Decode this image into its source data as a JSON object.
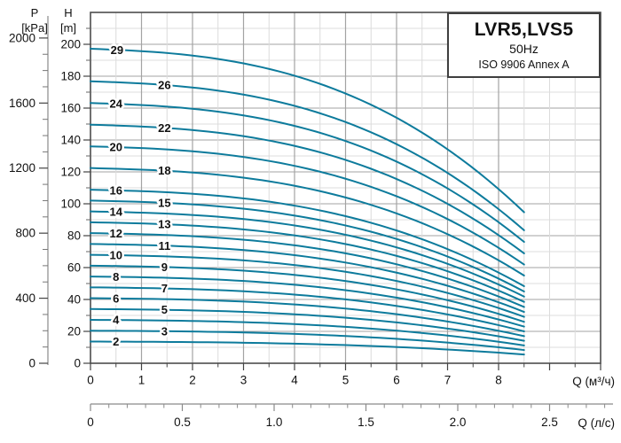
{
  "header": {
    "pressure_axis_title": "P\n[kPa]",
    "head_axis_title": "H\n[m]"
  },
  "title_box": {
    "model": "LVR5,LVS5",
    "frequency": "50Hz",
    "standard": "ISO 9906 Annex A"
  },
  "colors": {
    "curve": "#0d7b9c",
    "grid_major": "#a3a3a3",
    "grid_minor": "#dcdcdc",
    "frame": "#4d4d4d",
    "axis_secondary": "#8a8a8a",
    "tick": "#444444",
    "text": "#111111"
  },
  "chart_data": {
    "type": "line",
    "title": "LVR5,LVS5",
    "subtitle": "50Hz",
    "note": "ISO 9906 Annex A",
    "grid": true,
    "x_axis": {
      "label": "Q (м³/ч)",
      "ticks": [
        0,
        1,
        2,
        3,
        4,
        5,
        6,
        7,
        8
      ],
      "minor_step": 0.5,
      "range": [
        0,
        10
      ]
    },
    "x_axis_secondary": {
      "label": "Q (л/с)",
      "ticks": [
        "0",
        "0.5",
        "1.0",
        "1.5",
        "2.0",
        "2.5"
      ],
      "tick_values": [
        0,
        0.5,
        1.0,
        1.5,
        2.0,
        2.5
      ],
      "minor_step": 0.1,
      "range": [
        0,
        2.8
      ],
      "conversion": "1 л/с = 3.6 м³/ч"
    },
    "y_axis_head": {
      "label": "H [m]",
      "ticks": [
        0,
        20,
        40,
        60,
        80,
        100,
        120,
        140,
        160,
        180,
        200
      ],
      "minor_step": 10,
      "range": [
        0,
        220
      ]
    },
    "y_axis_pressure": {
      "label": "P [kPa]",
      "ticks": [
        0,
        400,
        800,
        1200,
        1600,
        2000
      ],
      "minor_step": 100,
      "kpa_per_m": 9.80665
    },
    "q_end": 8.5,
    "curve_shape": {
      "linear_part": 0.1,
      "power_part": 0.9,
      "exponent": 2.7
    },
    "series": [
      {
        "label": "2",
        "h0": 13.6,
        "h_end": 5.5,
        "label_q": 0.5
      },
      {
        "label": "3",
        "h0": 20.4,
        "h_end": 8.3,
        "label_q": 1.45
      },
      {
        "label": "4",
        "h0": 27.2,
        "h_end": 11.2,
        "label_q": 0.5
      },
      {
        "label": "5",
        "h0": 34.0,
        "h_end": 14.1,
        "label_q": 1.45
      },
      {
        "label": "6",
        "h0": 40.8,
        "h_end": 17.0,
        "label_q": 0.5
      },
      {
        "label": "7",
        "h0": 47.6,
        "h_end": 20.0,
        "label_q": 1.45
      },
      {
        "label": "8",
        "h0": 54.4,
        "h_end": 23.0,
        "label_q": 0.5
      },
      {
        "label": "9",
        "h0": 61.2,
        "h_end": 26.0,
        "label_q": 1.45
      },
      {
        "label": "10",
        "h0": 68.0,
        "h_end": 29.1,
        "label_q": 0.5
      },
      {
        "label": "11",
        "h0": 74.8,
        "h_end": 32.2,
        "label_q": 1.45
      },
      {
        "label": "12",
        "h0": 81.6,
        "h_end": 35.3,
        "label_q": 0.5
      },
      {
        "label": "13",
        "h0": 88.4,
        "h_end": 38.5,
        "label_q": 1.45
      },
      {
        "label": "14",
        "h0": 95.2,
        "h_end": 41.8,
        "label_q": 0.5
      },
      {
        "label": "15",
        "h0": 102.0,
        "h_end": 45.0,
        "label_q": 1.45
      },
      {
        "label": "16",
        "h0": 108.8,
        "h_end": 48.3,
        "label_q": 0.5
      },
      {
        "label": "18",
        "h0": 122.4,
        "h_end": 55.0,
        "label_q": 1.45
      },
      {
        "label": "20",
        "h0": 136.0,
        "h_end": 61.9,
        "label_q": 0.5
      },
      {
        "label": "22",
        "h0": 149.6,
        "h_end": 68.9,
        "label_q": 1.45
      },
      {
        "label": "24",
        "h0": 163.2,
        "h_end": 76.1,
        "label_q": 0.5
      },
      {
        "label": "26",
        "h0": 176.8,
        "h_end": 83.4,
        "label_q": 1.45
      },
      {
        "label": "29",
        "h0": 197.2,
        "h_end": 94.7,
        "label_q": 0.52
      }
    ]
  }
}
